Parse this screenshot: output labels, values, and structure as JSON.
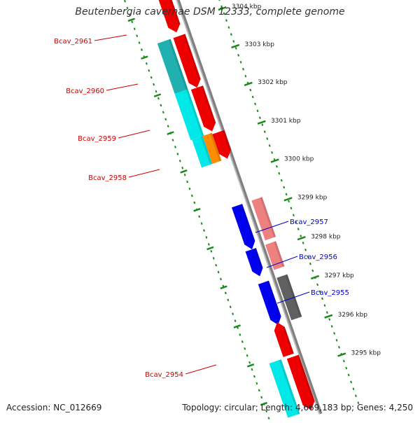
{
  "title": "Beutenbergia cavernae DSM 12333, complete genome",
  "footer": {
    "accession": "Accession: NC_012669",
    "info": "Topology: circular; Length: 4,669,183 bp; Genes: 4,250"
  },
  "colors": {
    "backbone": "#808080",
    "tick": "#1a8a1a",
    "label_forward": "#cc0000",
    "label_reverse": "#0000cc",
    "gene_red": "#ee0000",
    "gene_pink": "#ee8080",
    "gene_blue": "#0000ee",
    "gene_cyan": "#00e8e8",
    "gene_teal": "#20b0b0",
    "gene_orange": "#ff8c00",
    "gene_gray": "#606060"
  },
  "scale_labels": [
    "3304 kbp",
    "3303 kbp",
    "3302 kbp",
    "3301 kbp",
    "3300 kbp",
    "3299 kbp",
    "3298 kbp",
    "3297 kbp",
    "3296 kbp",
    "3295 kbp"
  ],
  "gene_labels": [
    {
      "text": "Bcav_2961",
      "strand": "forward"
    },
    {
      "text": "Bcav_2960",
      "strand": "forward"
    },
    {
      "text": "Bcav_2959",
      "strand": "forward"
    },
    {
      "text": "Bcav_2958",
      "strand": "forward"
    },
    {
      "text": "Bcav_2957",
      "strand": "reverse"
    },
    {
      "text": "Bcav_2956",
      "strand": "reverse"
    },
    {
      "text": "Bcav_2955",
      "strand": "reverse"
    },
    {
      "text": "Bcav_2954",
      "strand": "forward"
    }
  ]
}
